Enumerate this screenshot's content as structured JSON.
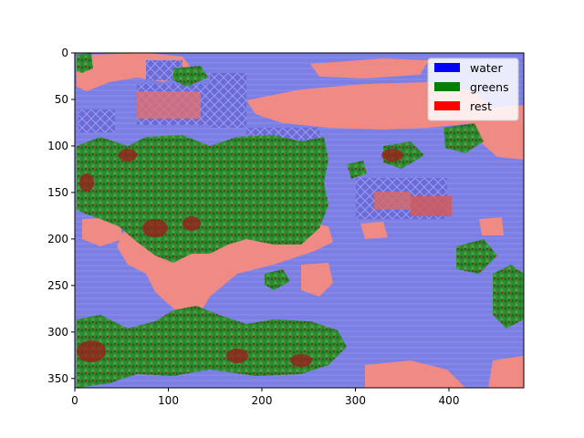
{
  "chart_data": {
    "type": "image-overlay",
    "title": "",
    "xlabel": "",
    "ylabel": "",
    "xlim": [
      0,
      480
    ],
    "ylim": [
      360,
      0
    ],
    "x_ticks": [
      0,
      100,
      200,
      300,
      400
    ],
    "y_ticks": [
      0,
      50,
      100,
      150,
      200,
      250,
      300,
      350
    ],
    "legend_placement": "top-right",
    "legend": [
      {
        "label": "water",
        "color": "#0000ff"
      },
      {
        "label": "greens",
        "color": "#008000"
      },
      {
        "label": "rest",
        "color": "#ff0000"
      }
    ],
    "colors": {
      "water_overlay": "#7f7fe6",
      "greens_overlay": "#2f7f2f",
      "rest_overlay": "#f08080"
    }
  }
}
